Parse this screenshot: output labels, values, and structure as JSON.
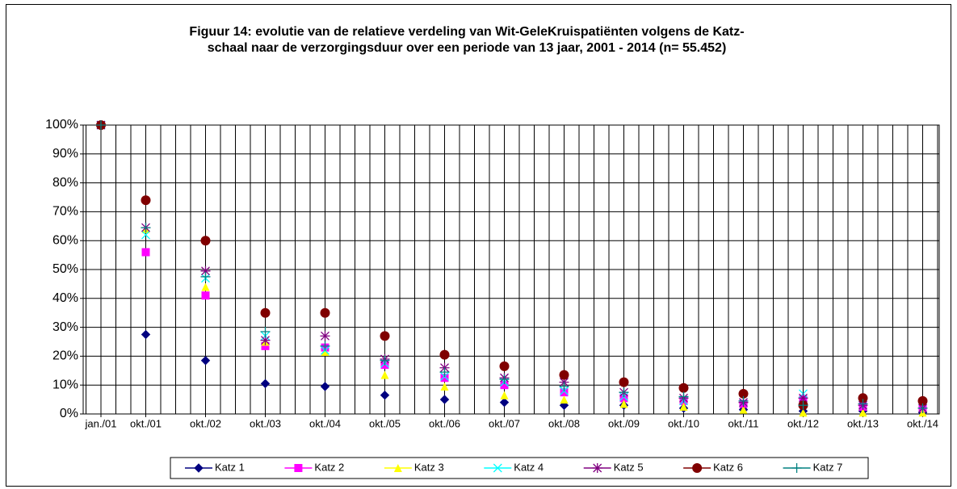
{
  "chart_data": {
    "type": "scatter",
    "title": [
      "Figuur 14: evolutie van de relatieve verdeling van Wit-GeleKruispatiënten volgens de Katz-",
      "schaal naar de verzorgingsduur over een periode van 13 jaar, 2001 - 2014 (n= 55.452)"
    ],
    "categories": [
      "jan./01",
      "okt./01",
      "okt./02",
      "okt./03",
      "okt./04",
      "okt./05",
      "okt./06",
      "okt./07",
      "okt./08",
      "okt./09",
      "okt./10",
      "okt./11",
      "okt./12",
      "okt./13",
      "okt./14"
    ],
    "ylim": [
      0,
      100
    ],
    "yticks": [
      {
        "value": 0,
        "label": "0%"
      },
      {
        "value": 10,
        "label": "10%"
      },
      {
        "value": 20,
        "label": "20%"
      },
      {
        "value": 30,
        "label": "30%"
      },
      {
        "value": 40,
        "label": "40%"
      },
      {
        "value": 50,
        "label": "50%"
      },
      {
        "value": 60,
        "label": "60%"
      },
      {
        "value": 70,
        "label": "70%"
      },
      {
        "value": 80,
        "label": "80%"
      },
      {
        "value": 90,
        "label": "90%"
      },
      {
        "value": 100,
        "label": "100%"
      }
    ],
    "grid": true,
    "legend": "bottom",
    "series": [
      {
        "name": "Katz 1",
        "color": "#000080",
        "marker": "diamond",
        "values": [
          100,
          27.5,
          18.5,
          10.5,
          9.5,
          6.5,
          5,
          4,
          3,
          3,
          2,
          1.5,
          1,
          1,
          0.5
        ]
      },
      {
        "name": "Katz 2",
        "color": "#ff00ff",
        "marker": "square",
        "values": [
          100,
          56,
          41,
          23.5,
          23,
          17,
          12.5,
          10,
          7.5,
          5.5,
          4.5,
          3.5,
          5,
          2.5,
          2
        ]
      },
      {
        "name": "Katz 3",
        "color": "#ffff00",
        "marker": "triangle",
        "values": [
          100,
          64,
          44,
          25,
          21.5,
          13.5,
          9.5,
          6.5,
          5,
          3.5,
          2.5,
          1.5,
          0.5,
          0.5,
          0.5
        ]
      },
      {
        "name": "Katz 4",
        "color": "#00ffff",
        "marker": "x",
        "values": [
          100,
          62,
          47,
          27,
          22,
          17.5,
          13,
          11,
          8,
          6,
          4.5,
          4,
          7,
          3,
          2
        ]
      },
      {
        "name": "Katz 5",
        "color": "#800080",
        "marker": "star",
        "values": [
          100,
          64.5,
          49.5,
          25.5,
          27,
          19,
          16,
          12.5,
          11,
          7.5,
          5.5,
          4,
          5.5,
          3,
          2
        ]
      },
      {
        "name": "Katz 6",
        "color": "#800000",
        "marker": "circle",
        "values": [
          100,
          74,
          60,
          35,
          35,
          27,
          20.5,
          16.5,
          13.5,
          11,
          9,
          7,
          3,
          5.5,
          4.5
        ]
      },
      {
        "name": "Katz 7",
        "color": "#008080",
        "marker": "plus",
        "values": [
          100,
          64.5,
          47.5,
          28.5,
          23.5,
          18.5,
          14.5,
          12,
          9.5,
          7.5,
          6,
          4.5,
          3,
          3.5,
          2
        ]
      }
    ]
  }
}
